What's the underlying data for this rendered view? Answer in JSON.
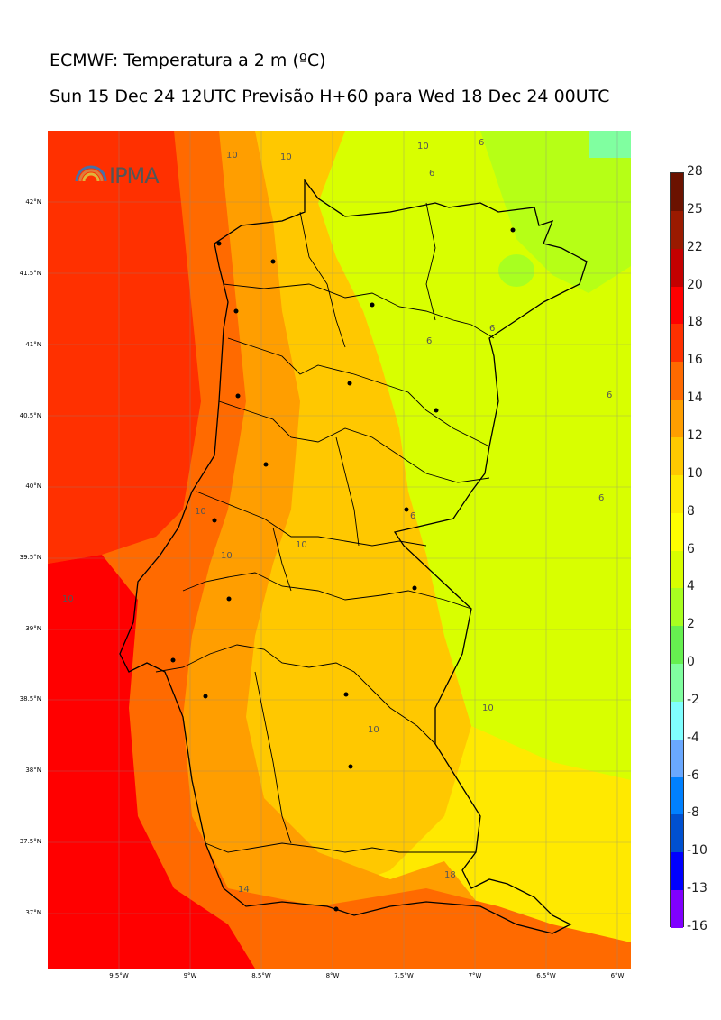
{
  "title_line1": "ECMWF: Temperatura a 2 m (ºC)",
  "title_line2": "Sun 15 Dec 24 12UTC Previsão H+60 para Wed 18 Dec 24 00UTC",
  "logo_text": "IPMA",
  "lat_labels": [
    "42°N",
    "41.5°N",
    "41°N",
    "40.5°N",
    "40°N",
    "39.5°N",
    "39°N",
    "38.5°N",
    "38°N",
    "37.5°N",
    "37°N"
  ],
  "lon_labels": [
    "9.5°W",
    "9°W",
    "8.5°W",
    "8°W",
    "7.5°W",
    "7°W",
    "6.5°W",
    "6°W"
  ],
  "colorbar": {
    "labels": [
      "28",
      "25",
      "22",
      "20",
      "18",
      "16",
      "14",
      "12",
      "10",
      "8",
      "6",
      "4",
      "2",
      "0",
      "-2",
      "-4",
      "-6",
      "-8",
      "-10",
      "-13",
      "-16"
    ],
    "colors": [
      "#6b1200",
      "#9a1a00",
      "#c40000",
      "#ff0000",
      "#ff3000",
      "#ff6a00",
      "#ff9e00",
      "#ffc800",
      "#ffe900",
      "#ffff00",
      "#d8ff00",
      "#a8ff20",
      "#66f050",
      "#80ffa0",
      "#80ffff",
      "#6aa8ff",
      "#0080ff",
      "#0050d0",
      "#0000ff",
      "#8000ff",
      "#e000ff"
    ]
  },
  "contour_labels": [
    "10",
    "10",
    "10",
    "6",
    "6",
    "6",
    "6",
    "6",
    "6",
    "10",
    "10",
    "6",
    "10",
    "10",
    "10",
    "10",
    "14",
    "18",
    "10",
    "14"
  ]
}
